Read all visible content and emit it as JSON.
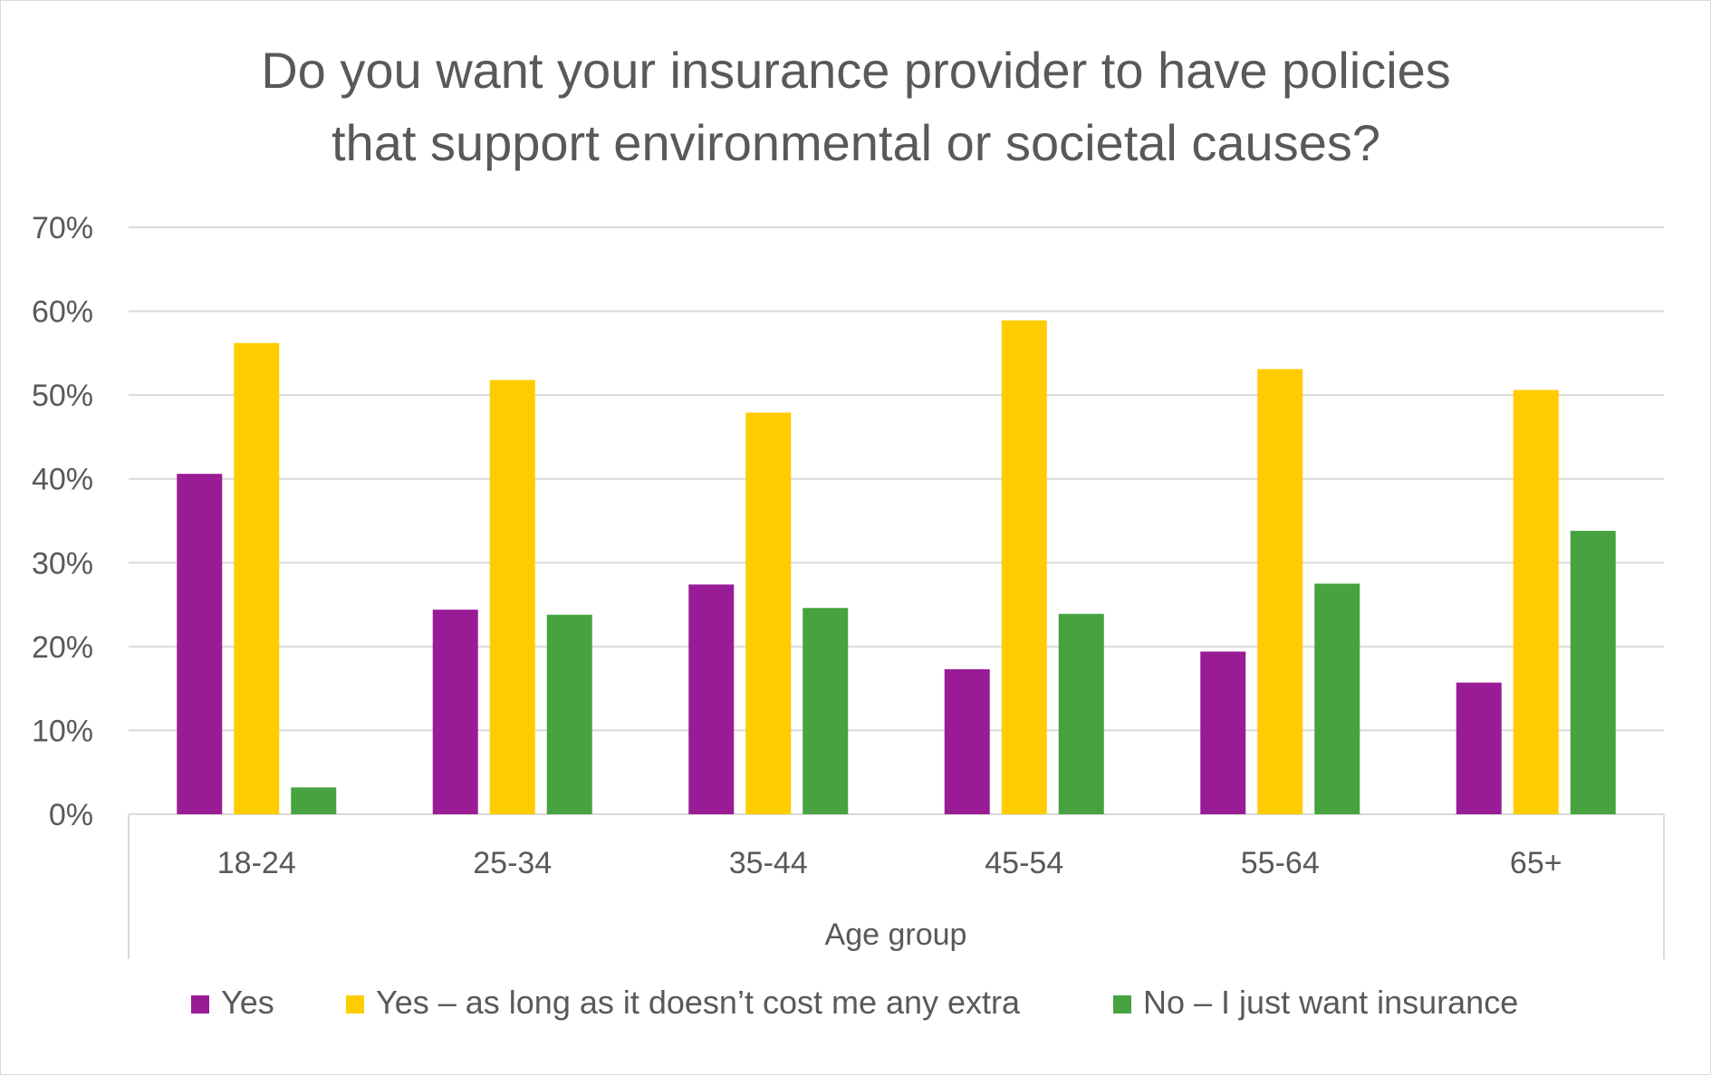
{
  "chart_data": {
    "type": "bar",
    "title_lines": [
      "Do you want your insurance provider to have policies",
      "that support environmental or societal causes?"
    ],
    "xlabel": "Age group",
    "ylabel": "",
    "ylim": [
      0,
      70
    ],
    "yticks": [
      0,
      10,
      20,
      30,
      40,
      50,
      60,
      70
    ],
    "ytick_labels": [
      "0%",
      "10%",
      "20%",
      "30%",
      "40%",
      "50%",
      "60%",
      "70%"
    ],
    "categories": [
      "18-24",
      "25-34",
      "35-44",
      "45-54",
      "55-64",
      "65+"
    ],
    "series": [
      {
        "name": "Yes",
        "color": "#991c96",
        "values": [
          40.6,
          24.4,
          27.4,
          17.3,
          19.4,
          15.7
        ]
      },
      {
        "name": "Yes – as long as it doesn’t cost me any extra",
        "color": "#ffcc00",
        "values": [
          56.2,
          51.8,
          47.9,
          58.9,
          53.1,
          50.6
        ]
      },
      {
        "name": "No – I just want insurance",
        "color": "#46a340",
        "values": [
          3.2,
          23.8,
          24.6,
          23.9,
          27.5,
          33.8
        ]
      }
    ],
    "grid": true,
    "legend_position": "bottom"
  }
}
